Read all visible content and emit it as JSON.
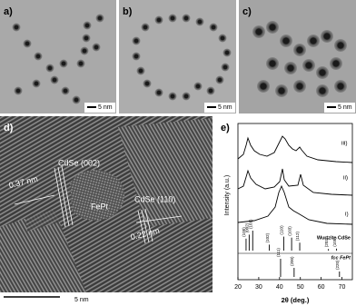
{
  "panels": [
    {
      "label": "a)",
      "scale_bar": "5 nm"
    },
    {
      "label": "b)",
      "scale_bar": "5 nm"
    },
    {
      "label": "c)",
      "scale_bar": "5 nm"
    }
  ],
  "panel_d": {
    "label": "d)",
    "annotations": [
      "0.37 nm",
      "CdSe (002)",
      "FePt",
      "CdSe (110)",
      "0.22 nm"
    ],
    "scale_bar": "5 nm"
  },
  "panel_e": {
    "label": "e)",
    "y_label": "Intensity (a.u.)",
    "x_label": "2θ (deg.)",
    "xlim": [
      20,
      75
    ],
    "xticks": [
      20,
      30,
      40,
      50,
      60,
      70
    ],
    "curve_labels": [
      "iii)",
      "ii)",
      "i)"
    ],
    "references": [
      {
        "name": "Wurtzite CdSe",
        "peaks": [
          {
            "label": "(100)",
            "value": 23.9,
            "height": 60
          },
          {
            "label": "(002)",
            "value": 25.4,
            "height": 80
          },
          {
            "label": "(101)",
            "value": 27.1,
            "height": 100
          },
          {
            "label": "(102)",
            "value": 35.1,
            "height": 30
          },
          {
            "label": "(110)",
            "value": 42.0,
            "height": 70
          },
          {
            "label": "(103)",
            "value": 45.8,
            "height": 65
          },
          {
            "label": "(112)",
            "value": 49.7,
            "height": 40
          },
          {
            "label": "(203)",
            "value": 63.5,
            "height": 8
          },
          {
            "label": "(105)",
            "value": 67.4,
            "height": 10
          }
        ]
      },
      {
        "name": "fcc FePt",
        "peaks": [
          {
            "label": "(111)",
            "value": 40.5,
            "height": 100
          },
          {
            "label": "(200)",
            "value": 47.0,
            "height": 50
          },
          {
            "label": "(220)",
            "value": 68.8,
            "height": 30
          }
        ]
      }
    ]
  }
}
